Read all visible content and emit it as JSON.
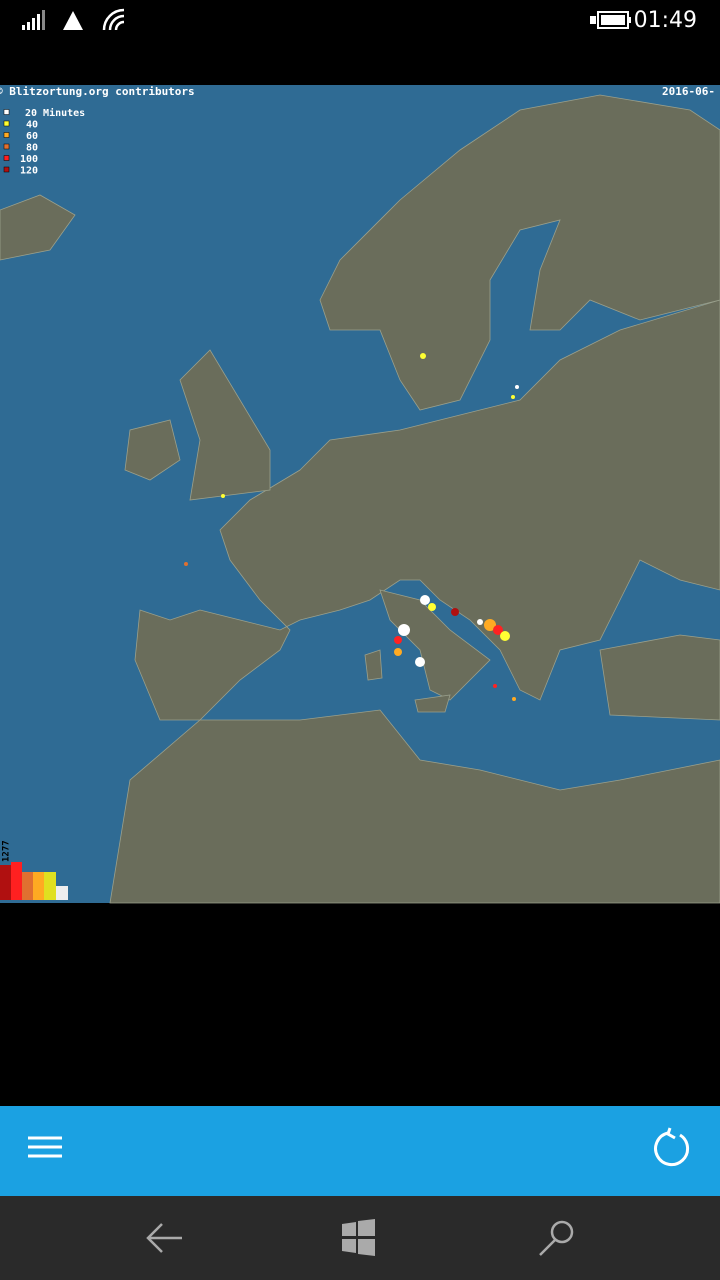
{
  "status_bar": {
    "time": "01:49"
  },
  "map": {
    "credit": "© Blitzortung.org contributors",
    "date": "2016-06-",
    "legend": [
      {
        "label": "20 Minutes",
        "color": "#ffffff"
      },
      {
        "label": "40",
        "color": "#ffff33"
      },
      {
        "label": "60",
        "color": "#ffaa22"
      },
      {
        "label": "80",
        "color": "#e07030"
      },
      {
        "label": "100",
        "color": "#ff2020"
      },
      {
        "label": "120",
        "color": "#b01010"
      }
    ],
    "strike_count": "1277"
  }
}
